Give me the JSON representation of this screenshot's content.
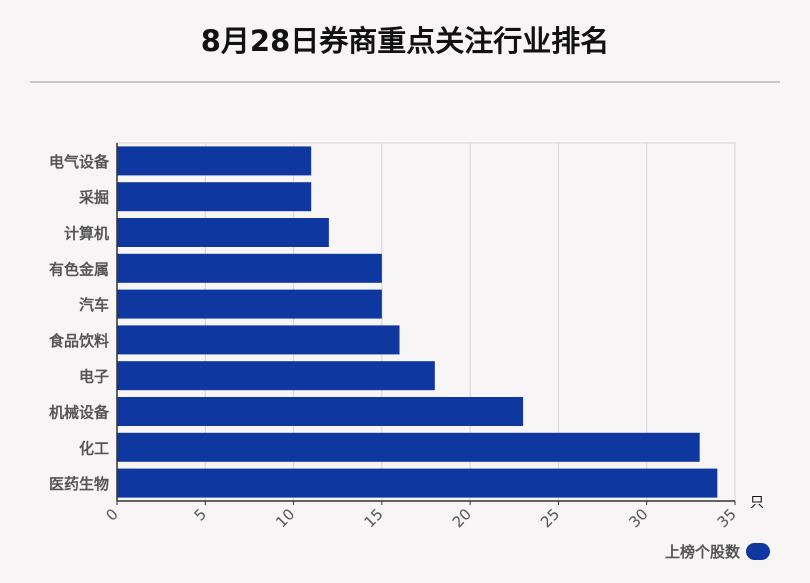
{
  "chart_data": {
    "type": "bar",
    "orientation": "horizontal",
    "title": "8月28日券商重点关注行业排名",
    "categories": [
      "电气设备",
      "采掘",
      "计算机",
      "有色金属",
      "汽车",
      "食品饮料",
      "电子",
      "机械设备",
      "化工",
      "医药生物"
    ],
    "series": [
      {
        "name": "上榜个股数",
        "values": [
          11,
          11,
          12,
          15,
          15,
          16,
          18,
          23,
          33,
          34
        ],
        "color": "#0f37a0"
      }
    ],
    "xlim": [
      0,
      35
    ],
    "x_ticks": [
      "0",
      "5",
      "10",
      "15",
      "20",
      "25",
      "30",
      "35"
    ],
    "x_unit": "只",
    "grid": true,
    "legend_position": "bottom-right"
  }
}
